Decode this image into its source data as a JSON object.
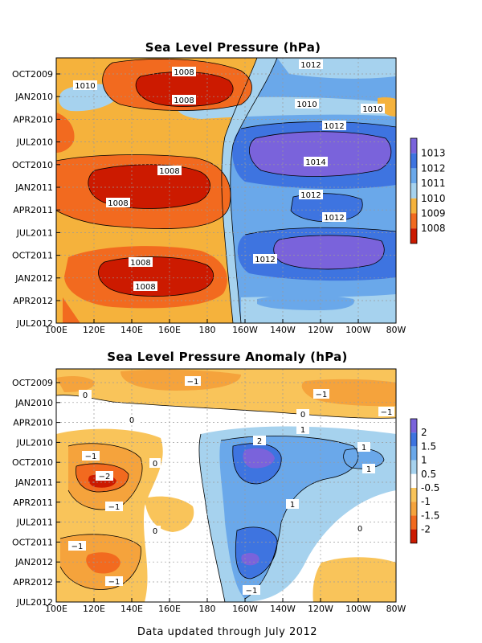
{
  "footer": "Data updated through July 2012",
  "chart_data": [
    {
      "type": "heatmap",
      "title": "Sea Level Pressure (hPa)",
      "x_ticks": [
        "100E",
        "120E",
        "140E",
        "160E",
        "180",
        "160W",
        "140W",
        "120W",
        "100W",
        "80W"
      ],
      "y_ticks": [
        "OCT2009",
        "JAN2010",
        "APR2010",
        "JUL2010",
        "OCT2010",
        "JAN2011",
        "APR2011",
        "JUL2011",
        "OCT2011",
        "JAN2012",
        "APR2012",
        "JUL2012"
      ],
      "colorbar": {
        "labels": [
          "1013",
          "1012",
          "1011",
          "1010",
          "1009",
          "1008"
        ],
        "colors": [
          "#cc1a00",
          "#f26a1f",
          "#f5b23c",
          "#a6d2ee",
          "#6aa8ea",
          "#3e74e0",
          "#7a63db"
        ]
      },
      "contour_labels": [
        {
          "text": "1008",
          "lon": 160,
          "time": "OCT2009"
        },
        {
          "text": "1008",
          "lon": 160,
          "time": "JAN2010"
        },
        {
          "text": "1010",
          "lon": 110,
          "time": "NOV2009"
        },
        {
          "text": "1012",
          "lon": 235,
          "time": "SEP2009"
        },
        {
          "text": "1010",
          "lon": 225,
          "time": "FEB2010"
        },
        {
          "text": "1010",
          "lon": 262,
          "time": "MAR2010"
        },
        {
          "text": "1012",
          "lon": 245,
          "time": "MAY2010"
        },
        {
          "text": "1014",
          "lon": 233,
          "time": "SEP2010"
        },
        {
          "text": "1008",
          "lon": 150,
          "time": "NOV2010"
        },
        {
          "text": "1008",
          "lon": 125,
          "time": "FEB2011"
        },
        {
          "text": "1012",
          "lon": 233,
          "time": "JAN2011"
        },
        {
          "text": "1012",
          "lon": 246,
          "time": "MAY2011"
        },
        {
          "text": "1012",
          "lon": 210,
          "time": "OCT2011"
        },
        {
          "text": "1008",
          "lon": 144,
          "time": "NOV2011"
        },
        {
          "text": "1008",
          "lon": 148,
          "time": "FEB2012"
        }
      ]
    },
    {
      "type": "heatmap",
      "title": "Sea Level Pressure Anomaly (hPa)",
      "x_ticks": [
        "100E",
        "120E",
        "140E",
        "160E",
        "180",
        "160W",
        "140W",
        "120W",
        "100W",
        "80W"
      ],
      "y_ticks": [
        "OCT2009",
        "JAN2010",
        "APR2010",
        "JUL2010",
        "OCT2010",
        "JAN2011",
        "APR2011",
        "JUL2011",
        "OCT2011",
        "JAN2012",
        "APR2012",
        "JUL2012"
      ],
      "colorbar": {
        "labels": [
          "2",
          "1.5",
          "1",
          "0.5",
          "-0.5",
          "-1",
          "-1.5",
          "-2"
        ],
        "colors": [
          "#cc1a00",
          "#f26a1f",
          "#f5a33c",
          "#f9c45a",
          "#ffffff",
          "#a6d2ee",
          "#6aa8ea",
          "#3e74e0",
          "#7a63db"
        ]
      },
      "contour_labels": [
        {
          "text": "−1",
          "lon": 170,
          "time": "SEP2009"
        },
        {
          "text": "0",
          "lon": 118,
          "time": "DEC2009"
        },
        {
          "text": "−1",
          "lon": 247,
          "time": "NOV2009"
        },
        {
          "text": "−1",
          "lon": 273,
          "time": "MAR2010"
        },
        {
          "text": "0",
          "lon": 148,
          "time": "MAR2010"
        },
        {
          "text": "0",
          "lon": 226,
          "time": "MAR2010"
        },
        {
          "text": "1",
          "lon": 226,
          "time": "MAY2010"
        },
        {
          "text": "2",
          "lon": 200,
          "time": "JUL2010"
        },
        {
          "text": "1",
          "lon": 264,
          "time": "JUL2010"
        },
        {
          "text": "1",
          "lon": 266,
          "time": "OCT2010"
        },
        {
          "text": "−1",
          "lon": 112,
          "time": "AUG2010"
        },
        {
          "text": "0",
          "lon": 167,
          "time": "OCT2010"
        },
        {
          "text": "−2",
          "lon": 126,
          "time": "DEC2010"
        },
        {
          "text": "−1",
          "lon": 124,
          "time": "APR2011"
        },
        {
          "text": "1",
          "lon": 225,
          "time": "APR2011"
        },
        {
          "text": "0",
          "lon": 163,
          "time": "AUG2011"
        },
        {
          "text": "0",
          "lon": 251,
          "time": "JUL2011"
        },
        {
          "text": "−1",
          "lon": 108,
          "time": "OCT2011"
        },
        {
          "text": "−1",
          "lon": 125,
          "time": "APR2012"
        },
        {
          "text": "−1",
          "lon": 198,
          "time": "JUN2012"
        }
      ]
    }
  ]
}
